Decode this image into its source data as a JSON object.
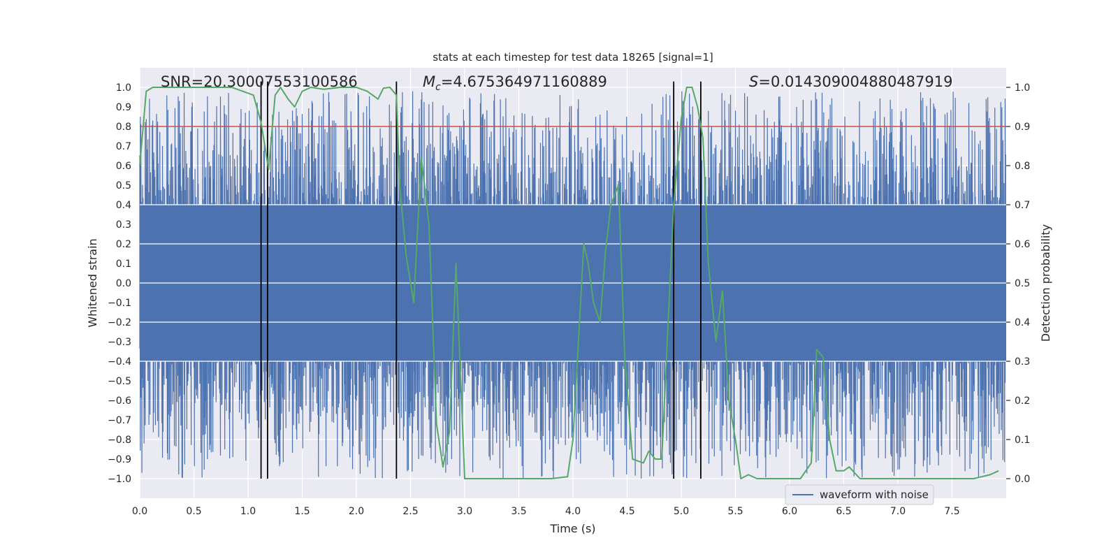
{
  "chart_data": {
    "type": "line",
    "title": "stats at each timestep for test data 18265 [signal=1]",
    "xlabel": "Time (s)",
    "ylabel": "Whitened strain",
    "y2label": "Detection probability",
    "xlim": [
      0.0,
      8.0
    ],
    "ylim": [
      -1.1,
      1.1
    ],
    "y2lim": [
      -0.05,
      1.05
    ],
    "xticks": [
      "0.0",
      "0.5",
      "1.0",
      "1.5",
      "2.0",
      "2.5",
      "3.0",
      "3.5",
      "4.0",
      "4.5",
      "5.0",
      "5.5",
      "6.0",
      "6.5",
      "7.0",
      "7.5"
    ],
    "xtick_values": [
      0,
      0.5,
      1,
      1.5,
      2,
      2.5,
      3,
      3.5,
      4,
      4.5,
      5,
      5.5,
      6,
      6.5,
      7,
      7.5
    ],
    "yticks": [
      "−1.0",
      "−0.9",
      "−0.8",
      "−0.7",
      "−0.6",
      "−0.5",
      "−0.4",
      "−0.3",
      "−0.2",
      "−0.1",
      "0.0",
      "0.1",
      "0.2",
      "0.3",
      "0.4",
      "0.5",
      "0.6",
      "0.7",
      "0.8",
      "0.9",
      "1.0"
    ],
    "ytick_values": [
      -1.0,
      -0.9,
      -0.8,
      -0.7,
      -0.6,
      -0.5,
      -0.4,
      -0.3,
      -0.2,
      -0.1,
      0.0,
      0.1,
      0.2,
      0.3,
      0.4,
      0.5,
      0.6,
      0.7,
      0.8,
      0.9,
      1.0
    ],
    "y2ticks": [
      "0.0",
      "0.1",
      "0.2",
      "0.3",
      "0.4",
      "0.5",
      "0.6",
      "0.7",
      "0.8",
      "0.9",
      "1.0"
    ],
    "y2tick_values": [
      0.0,
      0.1,
      0.2,
      0.3,
      0.4,
      0.5,
      0.6,
      0.7,
      0.8,
      0.9,
      1.0
    ],
    "annotations": {
      "snr": "SNR=20.30007553100586",
      "mc_symbol": "M",
      "mc_sub": "c",
      "mc_value": "=4.675364971160889",
      "s_symbol": "S",
      "s_value": "=0.014309004880487919"
    },
    "legend": {
      "label": "waveform with noise",
      "placement": "lower-right"
    },
    "threshold": {
      "value": 0.9,
      "axis": "y2",
      "color": "#c44e52"
    },
    "vlines": [
      1.12,
      1.18,
      2.37,
      4.93,
      5.18
    ],
    "waveform": {
      "name": "waveform with noise",
      "color": "#4c72b0",
      "duration": 8.0,
      "samples": 1600,
      "seed": 18265,
      "core_amplitude": 0.4,
      "max_positive": 0.98,
      "max_negative": -1.0
    },
    "probability": {
      "name": "detection probability",
      "color": "#55a868",
      "x": [
        0.0,
        0.06,
        0.12,
        0.2,
        0.3,
        0.5,
        0.7,
        0.85,
        0.95,
        1.05,
        1.12,
        1.19,
        1.25,
        1.3,
        1.37,
        1.43,
        1.5,
        1.58,
        1.7,
        1.85,
        2.0,
        2.1,
        2.2,
        2.25,
        2.31,
        2.37,
        2.4,
        2.46,
        2.53,
        2.6,
        2.67,
        2.74,
        2.8,
        2.86,
        2.92,
        3.0,
        3.2,
        3.5,
        3.8,
        3.95,
        4.0,
        4.05,
        4.1,
        4.14,
        4.19,
        4.25,
        4.3,
        4.35,
        4.42,
        4.48,
        4.55,
        4.65,
        4.7,
        4.76,
        4.82,
        4.87,
        4.93,
        5.0,
        5.05,
        5.1,
        5.15,
        5.2,
        5.25,
        5.32,
        5.38,
        5.44,
        5.5,
        5.55,
        5.62,
        5.7,
        5.9,
        6.1,
        6.2,
        6.25,
        6.31,
        6.37,
        6.43,
        6.5,
        6.55,
        6.65,
        6.8,
        7.0,
        7.3,
        7.5,
        7.7,
        7.85,
        7.93
      ],
      "y": [
        0.8,
        0.99,
        1.0,
        1.0,
        1.0,
        1.0,
        1.0,
        1.0,
        0.99,
        0.98,
        0.91,
        0.79,
        0.98,
        1.0,
        0.97,
        0.95,
        0.99,
        1.0,
        0.995,
        1.0,
        1.0,
        0.99,
        0.97,
        0.998,
        1.0,
        0.98,
        0.75,
        0.57,
        0.45,
        0.82,
        0.65,
        0.14,
        0.03,
        0.12,
        0.55,
        0.0,
        0.0,
        0.0,
        0.0,
        0.005,
        0.1,
        0.35,
        0.6,
        0.55,
        0.45,
        0.4,
        0.58,
        0.7,
        0.75,
        0.3,
        0.05,
        0.04,
        0.07,
        0.05,
        0.05,
        0.35,
        0.7,
        0.92,
        1.0,
        1.0,
        0.95,
        0.87,
        0.55,
        0.35,
        0.48,
        0.2,
        0.1,
        0.0,
        0.01,
        0.0,
        0.0,
        0.0,
        0.04,
        0.33,
        0.31,
        0.1,
        0.02,
        0.02,
        0.03,
        0.0,
        0.0,
        0.0,
        0.0,
        0.0,
        0.0,
        0.01,
        0.02
      ]
    }
  }
}
